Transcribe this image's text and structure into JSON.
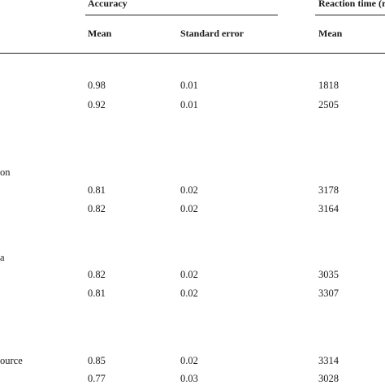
{
  "header": {
    "accuracy_label": "Accuracy",
    "reaction_time_label": "Reaction time (r",
    "accuracy_mean": "Mean",
    "accuracy_se": "Standard error",
    "rt_mean": "Mean"
  },
  "row_labels": {
    "label_1": "on",
    "label_2": "a",
    "label_3": "ource"
  },
  "rows": [
    {
      "acc_mean": "0.98",
      "acc_se": "0.01",
      "rt_mean": "1818"
    },
    {
      "acc_mean": "0.92",
      "acc_se": "0.01",
      "rt_mean": "2505"
    },
    {
      "acc_mean": "0.81",
      "acc_se": "0.02",
      "rt_mean": "3178"
    },
    {
      "acc_mean": "0.82",
      "acc_se": "0.02",
      "rt_mean": "3164"
    },
    {
      "acc_mean": "0.82",
      "acc_se": "0.02",
      "rt_mean": "3035"
    },
    {
      "acc_mean": "0.81",
      "acc_se": "0.02",
      "rt_mean": "3307"
    },
    {
      "acc_mean": "0.85",
      "acc_se": "0.02",
      "rt_mean": "3314"
    },
    {
      "acc_mean": "0.77",
      "acc_se": "0.03",
      "rt_mean": "3028"
    }
  ]
}
